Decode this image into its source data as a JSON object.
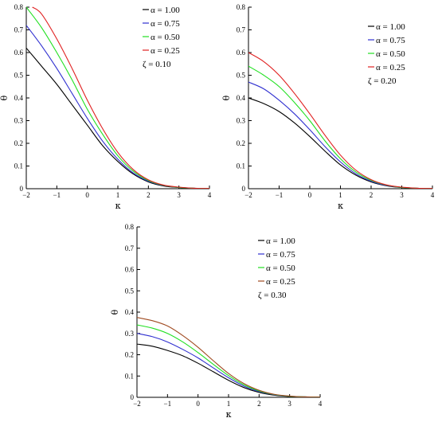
{
  "chart_data": [
    {
      "type": "line",
      "xlabel": "κ",
      "ylabel": "θ",
      "xlim": [
        -2,
        4
      ],
      "ylim": [
        0,
        0.8
      ],
      "xticks": [
        "-2",
        "-1",
        "0",
        "1",
        "2",
        "3",
        "4"
      ],
      "yticks": [
        "0",
        "0.1",
        "0.2",
        "0.3",
        "0.4",
        "0.5",
        "0.6",
        "0.7",
        "0.8"
      ],
      "legend_position": "top-right",
      "series": [
        {
          "name": "α = 1.00",
          "color": "#000000",
          "x": [
            -2,
            -1.5,
            -1,
            -0.5,
            0,
            0.5,
            1,
            1.5,
            2,
            2.5,
            3,
            3.5,
            4
          ],
          "y": [
            0.62,
            0.54,
            0.46,
            0.37,
            0.28,
            0.19,
            0.12,
            0.065,
            0.03,
            0.012,
            0.005,
            0.002,
            0.001
          ]
        },
        {
          "name": "α = 0.75",
          "color": "#3030d0",
          "x": [
            -2,
            -1.5,
            -1,
            -0.5,
            0,
            0.5,
            1,
            1.5,
            2,
            2.5,
            3,
            3.5,
            4
          ],
          "y": [
            0.72,
            0.63,
            0.53,
            0.42,
            0.31,
            0.21,
            0.13,
            0.07,
            0.033,
            0.014,
            0.006,
            0.002,
            0.001
          ]
        },
        {
          "name": "α = 0.50",
          "color": "#20e020",
          "x": [
            -2,
            -1.5,
            -1,
            -0.5,
            0,
            0.5,
            1,
            1.5,
            2,
            2.5,
            3,
            3.5,
            4
          ],
          "y": [
            0.8,
            0.71,
            0.6,
            0.48,
            0.35,
            0.24,
            0.145,
            0.078,
            0.036,
            0.015,
            0.006,
            0.002,
            0.001
          ]
        },
        {
          "name": "α = 0.25",
          "color": "#e02020",
          "x": [
            -1.8,
            -1.5,
            -1,
            -0.5,
            0,
            0.5,
            1,
            1.5,
            2,
            2.5,
            3,
            3.5,
            4
          ],
          "y": [
            0.8,
            0.77,
            0.66,
            0.53,
            0.39,
            0.265,
            0.16,
            0.085,
            0.039,
            0.016,
            0.007,
            0.002,
            0.001
          ]
        }
      ],
      "annotation": "ζ = 0.10"
    },
    {
      "type": "line",
      "xlabel": "κ",
      "ylabel": "θ",
      "xlim": [
        -2,
        4
      ],
      "ylim": [
        0,
        0.8
      ],
      "xticks": [
        "-2",
        "-1",
        "0",
        "1",
        "2",
        "3",
        "4"
      ],
      "yticks": [
        "0",
        "0.1",
        "0.2",
        "0.3",
        "0.4",
        "0.5",
        "0.6",
        "0.7",
        "0.8"
      ],
      "legend_position": "top-right",
      "series": [
        {
          "name": "α = 1.00",
          "color": "#000000",
          "x": [
            -2,
            -1.5,
            -1,
            -0.5,
            0,
            0.5,
            1,
            1.5,
            2,
            2.5,
            3,
            3.5,
            4
          ],
          "y": [
            0.4,
            0.375,
            0.34,
            0.29,
            0.23,
            0.165,
            0.105,
            0.06,
            0.03,
            0.013,
            0.005,
            0.002,
            0.001
          ]
        },
        {
          "name": "α = 0.75",
          "color": "#3030d0",
          "x": [
            -2,
            -1.5,
            -1,
            -0.5,
            0,
            0.5,
            1,
            1.5,
            2,
            2.5,
            3,
            3.5,
            4
          ],
          "y": [
            0.47,
            0.44,
            0.39,
            0.33,
            0.26,
            0.185,
            0.118,
            0.066,
            0.033,
            0.014,
            0.006,
            0.002,
            0.001
          ]
        },
        {
          "name": "α = 0.50",
          "color": "#20e020",
          "x": [
            -2,
            -1.5,
            -1,
            -0.5,
            0,
            0.5,
            1,
            1.5,
            2,
            2.5,
            3,
            3.5,
            4
          ],
          "y": [
            0.54,
            0.5,
            0.45,
            0.38,
            0.3,
            0.21,
            0.132,
            0.074,
            0.037,
            0.016,
            0.006,
            0.002,
            0.001
          ]
        },
        {
          "name": "α = 0.25",
          "color": "#e02020",
          "x": [
            -2,
            -1.5,
            -1,
            -0.5,
            0,
            0.5,
            1,
            1.5,
            2,
            2.5,
            3,
            3.5,
            4
          ],
          "y": [
            0.6,
            0.56,
            0.5,
            0.42,
            0.33,
            0.235,
            0.148,
            0.082,
            0.04,
            0.017,
            0.007,
            0.002,
            0.001
          ]
        }
      ],
      "annotation": "ζ = 0.20"
    },
    {
      "type": "line",
      "xlabel": "κ",
      "ylabel": "θ",
      "xlim": [
        -2,
        4
      ],
      "ylim": [
        0,
        0.8
      ],
      "xticks": [
        "-2",
        "-1",
        "0",
        "1",
        "2",
        "3",
        "4"
      ],
      "yticks": [
        "0",
        "0.1",
        "0.2",
        "0.3",
        "0.4",
        "0.5",
        "0.6",
        "0.7",
        "0.8"
      ],
      "legend_position": "top-right",
      "series": [
        {
          "name": "α = 1.00",
          "color": "#000000",
          "x": [
            -2,
            -1.5,
            -1,
            -0.5,
            0,
            0.5,
            1,
            1.5,
            2,
            2.5,
            3,
            3.5,
            4
          ],
          "y": [
            0.25,
            0.24,
            0.22,
            0.195,
            0.16,
            0.12,
            0.08,
            0.046,
            0.023,
            0.01,
            0.004,
            0.002,
            0.001
          ]
        },
        {
          "name": "α = 0.75",
          "color": "#3030d0",
          "x": [
            -2,
            -1.5,
            -1,
            -0.5,
            0,
            0.5,
            1,
            1.5,
            2,
            2.5,
            3,
            3.5,
            4
          ],
          "y": [
            0.3,
            0.285,
            0.26,
            0.225,
            0.185,
            0.138,
            0.092,
            0.053,
            0.027,
            0.012,
            0.005,
            0.002,
            0.001
          ]
        },
        {
          "name": "α = 0.50",
          "color": "#20e020",
          "x": [
            -2,
            -1.5,
            -1,
            -0.5,
            0,
            0.5,
            1,
            1.5,
            2,
            2.5,
            3,
            3.5,
            4
          ],
          "y": [
            0.34,
            0.325,
            0.3,
            0.26,
            0.21,
            0.155,
            0.102,
            0.059,
            0.03,
            0.013,
            0.005,
            0.002,
            0.001
          ]
        },
        {
          "name": "α = 0.25",
          "color": "#a04a20",
          "x": [
            -2,
            -1.5,
            -1,
            -0.5,
            0,
            0.5,
            1,
            1.5,
            2,
            2.5,
            3,
            3.5,
            4
          ],
          "y": [
            0.375,
            0.36,
            0.335,
            0.29,
            0.235,
            0.172,
            0.112,
            0.065,
            0.033,
            0.014,
            0.006,
            0.002,
            0.001
          ]
        }
      ],
      "annotation": "ζ = 0.30"
    }
  ]
}
